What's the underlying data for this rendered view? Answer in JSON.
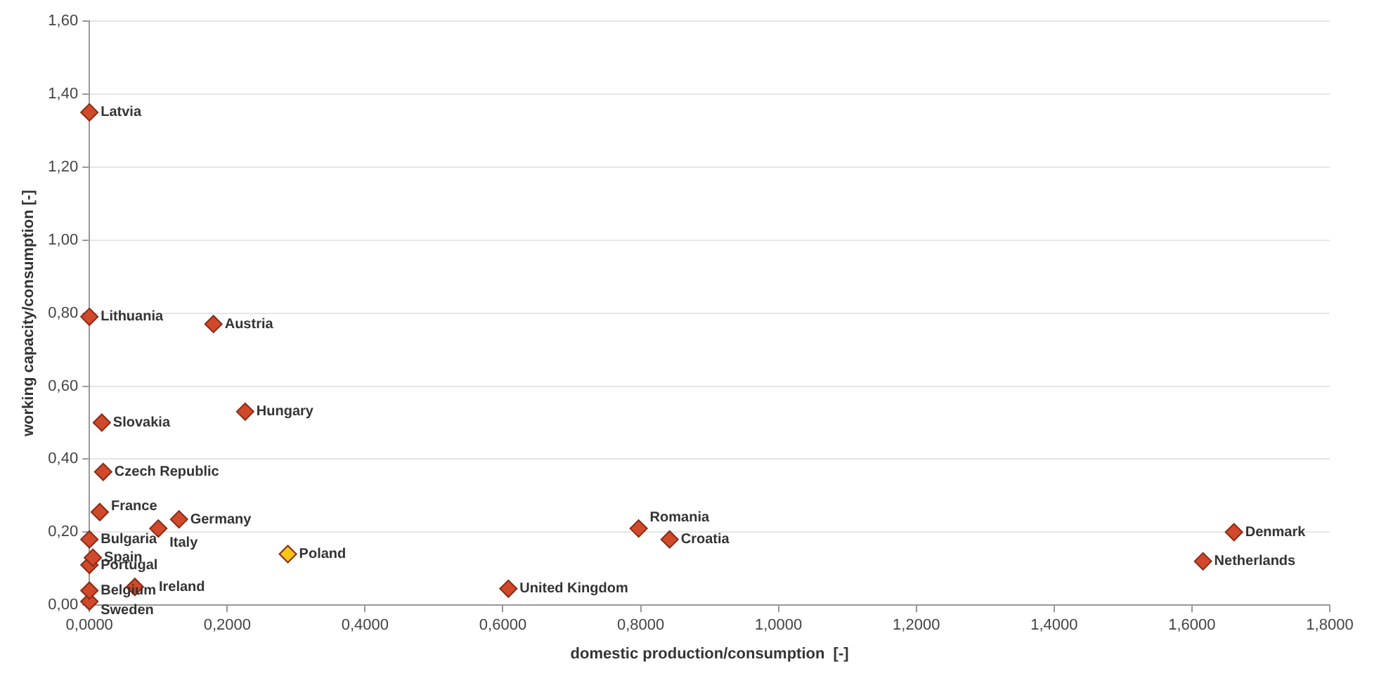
{
  "chart_data": {
    "type": "scatter",
    "xlabel": "domestic production/consumption  [-]",
    "ylabel": "working capacity/consumption [-]",
    "xlim": [
      0,
      1.8
    ],
    "ylim": [
      0,
      1.6
    ],
    "xticks": [
      {
        "value": 0,
        "label": "0,0000"
      },
      {
        "value": 0.2,
        "label": "0,2000"
      },
      {
        "value": 0.4,
        "label": "0,4000"
      },
      {
        "value": 0.6,
        "label": "0,6000"
      },
      {
        "value": 0.8,
        "label": "0,8000"
      },
      {
        "value": 1.0,
        "label": "1,0000"
      },
      {
        "value": 1.2,
        "label": "1,2000"
      },
      {
        "value": 1.4,
        "label": "1,4000"
      },
      {
        "value": 1.6,
        "label": "1,6000"
      },
      {
        "value": 1.8,
        "label": "1,8000"
      }
    ],
    "yticks": [
      {
        "value": 0,
        "label": "0,00"
      },
      {
        "value": 0.2,
        "label": "0,20"
      },
      {
        "value": 0.4,
        "label": "0,40"
      },
      {
        "value": 0.6,
        "label": "0,60"
      },
      {
        "value": 0.8,
        "label": "0,80"
      },
      {
        "value": 1.0,
        "label": "1,00"
      },
      {
        "value": 1.2,
        "label": "1,20"
      },
      {
        "value": 1.4,
        "label": "1,40"
      },
      {
        "value": 1.6,
        "label": "1,60"
      }
    ],
    "grid": "y",
    "legend": false,
    "marker": "diamond",
    "series": [
      {
        "name": "Latvia",
        "color": "#d0492b",
        "x": [
          0.0
        ],
        "values": [
          1.35
        ]
      },
      {
        "name": "Lithuania",
        "color": "#d0492b",
        "x": [
          0.0
        ],
        "values": [
          0.79
        ]
      },
      {
        "name": "Austria",
        "color": "#d0492b",
        "x": [
          0.18
        ],
        "values": [
          0.77
        ]
      },
      {
        "name": "Hungary",
        "color": "#d0492b",
        "x": [
          0.226
        ],
        "values": [
          0.53
        ]
      },
      {
        "name": "Slovakia",
        "color": "#d0492b",
        "x": [
          0.018
        ],
        "values": [
          0.5
        ]
      },
      {
        "name": "Czech Republic",
        "color": "#d0492b",
        "x": [
          0.02
        ],
        "values": [
          0.365
        ]
      },
      {
        "name": "France",
        "color": "#d0492b",
        "x": [
          0.015
        ],
        "values": [
          0.255
        ]
      },
      {
        "name": "Germany",
        "color": "#d0492b",
        "x": [
          0.13
        ],
        "values": [
          0.235
        ]
      },
      {
        "name": "Italy",
        "color": "#d0492b",
        "x": [
          0.1
        ],
        "values": [
          0.21
        ]
      },
      {
        "name": "Bulgaria",
        "color": "#d0492b",
        "x": [
          0.0
        ],
        "values": [
          0.18
        ]
      },
      {
        "name": "Spain",
        "color": "#d0492b",
        "x": [
          0.005
        ],
        "values": [
          0.13
        ]
      },
      {
        "name": "Portugal",
        "color": "#d0492b",
        "x": [
          0.0
        ],
        "values": [
          0.11
        ]
      },
      {
        "name": "Belgium",
        "color": "#d0492b",
        "x": [
          0.0
        ],
        "values": [
          0.04
        ]
      },
      {
        "name": "Sweden",
        "color": "#d0492b",
        "x": [
          0.0
        ],
        "values": [
          0.01
        ]
      },
      {
        "name": "Ireland",
        "color": "#d0492b",
        "x": [
          0.066
        ],
        "values": [
          0.05
        ]
      },
      {
        "name": "Poland",
        "color": "#f5c518",
        "x": [
          0.288
        ],
        "values": [
          0.14
        ]
      },
      {
        "name": "United Kingdom",
        "color": "#d0492b",
        "x": [
          0.608
        ],
        "values": [
          0.045
        ]
      },
      {
        "name": "Romania",
        "color": "#d0492b",
        "x": [
          0.797
        ],
        "values": [
          0.21
        ]
      },
      {
        "name": "Croatia",
        "color": "#d0492b",
        "x": [
          0.842
        ],
        "values": [
          0.18
        ]
      },
      {
        "name": "Denmark",
        "color": "#d0492b",
        "x": [
          1.661
        ],
        "values": [
          0.2
        ]
      },
      {
        "name": "Netherlands",
        "color": "#d0492b",
        "x": [
          1.616
        ],
        "values": [
          0.12
        ]
      }
    ]
  }
}
